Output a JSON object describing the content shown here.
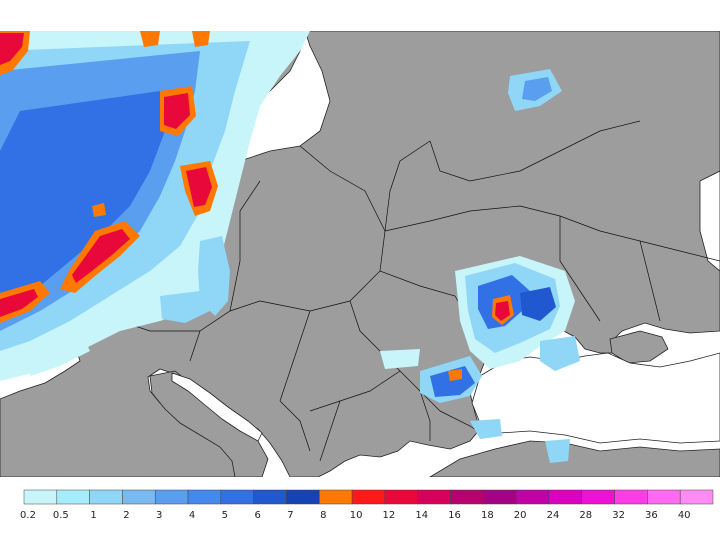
{
  "map": {
    "colors": {
      "sea": "#ffffff",
      "land": "#9d9d9d",
      "borders": "#000000"
    }
  },
  "legend": {
    "labels": [
      "0.2",
      "0.5",
      "1",
      "2",
      "3",
      "4",
      "5",
      "6",
      "7",
      "8",
      "10",
      "12",
      "14",
      "16",
      "18",
      "20",
      "24",
      "28",
      "32",
      "36",
      "40"
    ],
    "colors": [
      "#c8f5fa",
      "#a6ecfa",
      "#8fd6f7",
      "#7ab8f0",
      "#5a9ef0",
      "#4589ee",
      "#3270e6",
      "#2158cf",
      "#1643b4",
      "#ff7800",
      "#ff1a1a",
      "#e8093a",
      "#d6005c",
      "#b8006e",
      "#a60086",
      "#c200a6",
      "#dc00c0",
      "#f010d6",
      "#ff3ce6",
      "#ff6af0",
      "#ff8cf5"
    ]
  }
}
